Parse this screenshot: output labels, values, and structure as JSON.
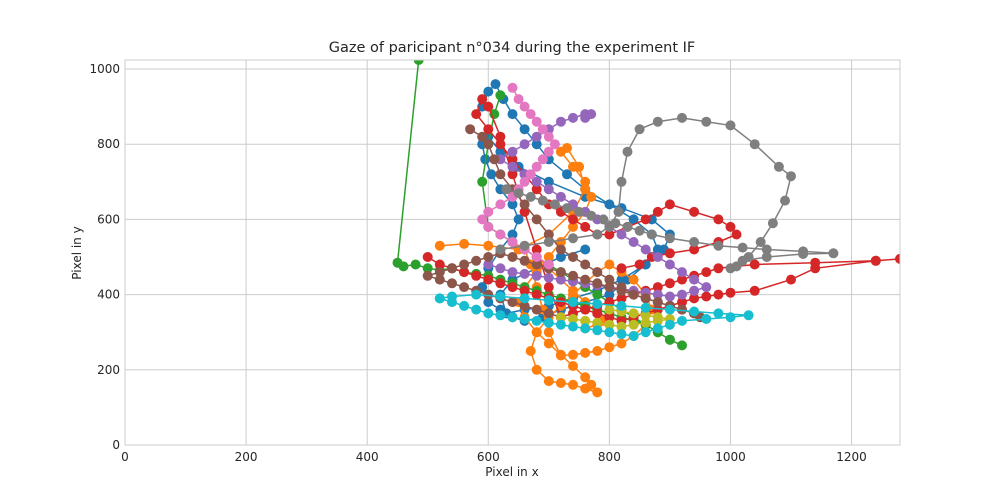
{
  "chart_data": {
    "type": "line",
    "title": "Gaze of paricipant n°034 during the experiment IF",
    "xlabel": "Pixel in x",
    "ylabel": "Pixel in y",
    "xlim": [
      0,
      1280
    ],
    "ylim": [
      0,
      1024
    ],
    "x_ticks": [
      0,
      200,
      400,
      600,
      800,
      1000,
      1200
    ],
    "y_ticks": [
      0,
      200,
      400,
      600,
      800,
      1000
    ],
    "grid": true,
    "marker": "circle",
    "series": [
      {
        "color": "#1f77b4",
        "x": [
          590,
          600,
          612,
          625,
          640,
          660,
          680,
          700,
          730,
          760,
          800,
          840,
          870,
          880,
          860,
          830,
          800,
          760,
          720,
          690,
          660,
          640,
          620,
          600,
          590,
          600,
          620,
          640,
          650,
          640,
          620,
          605,
          595,
          590,
          600,
          620,
          650,
          700,
          760,
          820,
          870,
          900,
          890,
          860,
          820,
          780,
          740,
          700,
          660,
          630,
          620,
          640,
          680,
          720,
          760
        ],
        "y": [
          900,
          940,
          960,
          920,
          880,
          840,
          800,
          760,
          720,
          680,
          640,
          600,
          560,
          520,
          480,
          440,
          400,
          380,
          360,
          340,
          330,
          340,
          360,
          380,
          420,
          470,
          520,
          560,
          600,
          640,
          680,
          720,
          760,
          800,
          820,
          780,
          740,
          700,
          660,
          630,
          600,
          560,
          520,
          480,
          440,
          410,
          390,
          370,
          360,
          350,
          400,
          440,
          470,
          500,
          520
        ]
      },
      {
        "color": "#ff7f0e",
        "x": [
          520,
          560,
          600,
          650,
          700,
          740,
          760,
          750,
          730,
          720,
          740,
          760,
          770,
          760,
          740,
          720,
          700,
          680,
          660,
          650,
          660,
          680,
          700,
          720,
          740,
          760,
          770,
          780,
          760,
          740,
          720,
          700,
          680,
          670,
          680,
          700,
          720,
          740,
          760,
          780,
          800,
          820,
          840,
          860,
          870,
          860,
          840,
          820,
          800,
          780,
          760,
          740,
          720,
          700,
          690,
          680,
          670,
          660,
          680,
          700,
          720,
          740,
          760,
          780,
          790,
          780,
          760
        ],
        "y": [
          530,
          535,
          530,
          520,
          560,
          620,
          680,
          740,
          790,
          780,
          740,
          700,
          660,
          620,
          580,
          540,
          500,
          460,
          420,
          380,
          340,
          300,
          270,
          240,
          210,
          180,
          160,
          140,
          150,
          160,
          165,
          170,
          200,
          250,
          300,
          340,
          370,
          400,
          430,
          460,
          480,
          460,
          440,
          400,
          360,
          320,
          290,
          270,
          260,
          250,
          245,
          240,
          238,
          300,
          360,
          420,
          480,
          520,
          500,
          470,
          440,
          410,
          380,
          350,
          330,
          320,
          310
        ]
      },
      {
        "color": "#2ca02c",
        "x": [
          485,
          450,
          460,
          480,
          500,
          520,
          540,
          560,
          580,
          600,
          620,
          640,
          660,
          680,
          700,
          720,
          740,
          760,
          780,
          800,
          820,
          840,
          860,
          880,
          900,
          920,
          900,
          880,
          860,
          840,
          820,
          800,
          780,
          760,
          740,
          720,
          700,
          680,
          660,
          640,
          620,
          600,
          590,
          600,
          610,
          620
        ],
        "y": [
          1024,
          485,
          475,
          480,
          470,
          465,
          470,
          460,
          455,
          450,
          440,
          430,
          420,
          410,
          400,
          390,
          380,
          370,
          360,
          350,
          340,
          330,
          320,
          300,
          280,
          265,
          280,
          300,
          320,
          340,
          360,
          380,
          400,
          420,
          440,
          460,
          480,
          500,
          520,
          540,
          560,
          580,
          700,
          800,
          880,
          930
        ]
      },
      {
        "color": "#d62728",
        "x": [
          500,
          520,
          540,
          560,
          580,
          600,
          620,
          640,
          660,
          680,
          700,
          720,
          740,
          760,
          780,
          800,
          820,
          840,
          860,
          880,
          900,
          920,
          940,
          960,
          980,
          1000,
          1040,
          1100,
          1140,
          1240,
          1280,
          1240,
          1140,
          1040,
          980,
          960,
          940,
          920,
          900,
          880,
          860,
          840,
          820,
          800,
          780,
          760,
          740,
          720,
          700,
          680,
          660,
          640,
          620,
          600,
          590,
          580,
          600,
          620,
          640,
          660,
          680,
          700,
          720,
          740,
          760,
          780,
          800,
          830,
          860,
          880,
          900,
          940,
          980,
          1000,
          1010,
          980,
          940,
          900,
          870,
          850,
          820
        ],
        "y": [
          500,
          480,
          470,
          460,
          450,
          440,
          430,
          420,
          410,
          400,
          390,
          380,
          370,
          360,
          350,
          340,
          330,
          340,
          350,
          360,
          370,
          380,
          390,
          395,
          400,
          405,
          410,
          440,
          470,
          490,
          495,
          490,
          485,
          480,
          470,
          460,
          450,
          440,
          430,
          420,
          410,
          400,
          390,
          380,
          370,
          360,
          350,
          340,
          420,
          520,
          620,
          720,
          820,
          900,
          920,
          880,
          840,
          800,
          760,
          720,
          680,
          640,
          620,
          600,
          580,
          560,
          560,
          580,
          600,
          620,
          640,
          620,
          600,
          580,
          560,
          540,
          520,
          510,
          500,
          480,
          470
        ]
      },
      {
        "color": "#9467bd",
        "x": [
          600,
          620,
          640,
          660,
          680,
          700,
          720,
          740,
          760,
          780,
          800,
          820,
          840,
          860,
          880,
          900,
          920,
          940,
          960,
          940,
          920,
          900,
          880,
          860,
          840,
          820,
          800,
          780,
          760,
          740,
          720,
          700,
          680,
          660,
          640,
          620,
          640,
          660,
          680,
          700,
          720,
          740,
          760,
          770,
          760
        ],
        "y": [
          480,
          470,
          460,
          455,
          450,
          445,
          440,
          435,
          430,
          425,
          420,
          415,
          410,
          405,
          400,
          395,
          400,
          410,
          420,
          440,
          460,
          480,
          500,
          520,
          540,
          560,
          580,
          600,
          620,
          640,
          660,
          680,
          700,
          720,
          740,
          760,
          780,
          800,
          820,
          840,
          860,
          870,
          880,
          880,
          870
        ]
      },
      {
        "color": "#8c564b",
        "x": [
          570,
          590,
          600,
          610,
          620,
          640,
          660,
          680,
          700,
          720,
          740,
          760,
          780,
          800,
          820,
          840,
          860,
          880,
          900,
          920,
          940,
          950,
          940,
          920,
          900,
          880,
          860,
          840,
          820,
          800,
          780,
          760,
          740,
          720,
          700,
          680,
          660,
          640,
          620,
          600,
          580,
          560,
          540,
          520,
          500,
          520,
          540,
          560,
          580,
          600,
          620,
          640,
          660,
          680,
          700,
          720
        ],
        "y": [
          840,
          820,
          800,
          760,
          720,
          680,
          640,
          600,
          560,
          520,
          500,
          480,
          460,
          440,
          420,
          400,
          390,
          380,
          370,
          360,
          350,
          340,
          350,
          360,
          370,
          380,
          390,
          400,
          410,
          420,
          430,
          440,
          450,
          460,
          470,
          480,
          490,
          500,
          510,
          500,
          490,
          480,
          470,
          460,
          450,
          440,
          430,
          420,
          410,
          400,
          390,
          380,
          370,
          360,
          350,
          340
        ]
      },
      {
        "color": "#e377c2",
        "x": [
          640,
          650,
          660,
          670,
          680,
          690,
          700,
          710,
          700,
          690,
          680,
          670,
          660,
          650,
          640,
          620,
          600,
          590,
          600,
          620,
          640,
          660,
          680,
          700
        ],
        "y": [
          950,
          920,
          900,
          880,
          860,
          840,
          820,
          800,
          780,
          760,
          740,
          720,
          700,
          680,
          660,
          640,
          620,
          600,
          580,
          560,
          540,
          520,
          500,
          480
        ]
      },
      {
        "color": "#7f7f7f",
        "x": [
          620,
          660,
          700,
          740,
          780,
          800,
          815,
          820,
          830,
          850,
          880,
          920,
          960,
          1000,
          1040,
          1080,
          1100,
          1090,
          1070,
          1050,
          1030,
          1010,
          1000,
          1020,
          1060,
          1120,
          1170,
          1120,
          1060,
          1020,
          980,
          940,
          900,
          870,
          850,
          830,
          810,
          790,
          770,
          750,
          730,
          710,
          690,
          670,
          650,
          630
        ],
        "y": [
          520,
          530,
          540,
          550,
          560,
          580,
          620,
          700,
          780,
          840,
          860,
          870,
          860,
          850,
          800,
          740,
          715,
          650,
          590,
          540,
          500,
          475,
          470,
          490,
          500,
          508,
          510,
          515,
          520,
          525,
          530,
          540,
          550,
          560,
          570,
          580,
          590,
          600,
          610,
          620,
          630,
          640,
          650,
          660,
          670,
          680
        ]
      },
      {
        "color": "#bcbd22",
        "x": [
          720,
          740,
          760,
          780,
          800,
          820,
          840,
          860,
          880,
          900,
          880,
          860,
          840,
          820,
          800
        ],
        "y": [
          340,
          335,
          330,
          325,
          320,
          315,
          320,
          325,
          330,
          335,
          340,
          345,
          350,
          355,
          360
        ]
      },
      {
        "color": "#17becf",
        "x": [
          520,
          540,
          560,
          580,
          600,
          620,
          640,
          660,
          680,
          700,
          720,
          740,
          760,
          780,
          800,
          820,
          840,
          860,
          880,
          900,
          920,
          960,
          1000,
          1030,
          980,
          940,
          900,
          860,
          820,
          780,
          740,
          700,
          660,
          620,
          580,
          540,
          520
        ],
        "y": [
          390,
          380,
          370,
          360,
          350,
          345,
          340,
          335,
          330,
          325,
          320,
          315,
          310,
          305,
          300,
          295,
          290,
          300,
          310,
          320,
          330,
          335,
          340,
          345,
          350,
          355,
          360,
          365,
          370,
          375,
          380,
          385,
          390,
          395,
          400,
          395,
          390
        ]
      }
    ]
  }
}
